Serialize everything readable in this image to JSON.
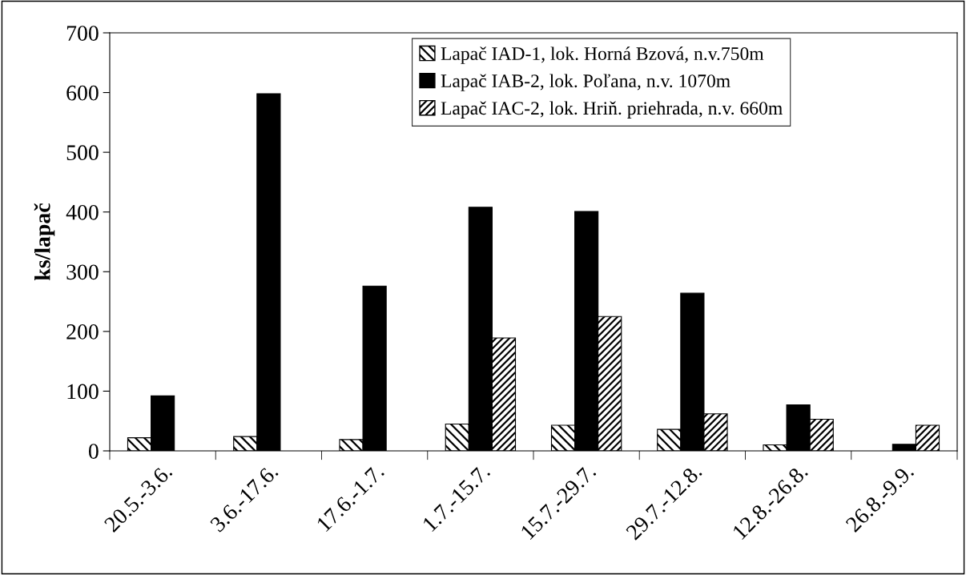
{
  "chart_data": {
    "type": "bar",
    "ylabel": "ks/lapač",
    "categories": [
      "20.5.-3.6.",
      "3.6.-17.6.",
      "17.6.-1.7.",
      "1.7.-15.7.",
      "15.7.-29.7.",
      "29.7.-12.8.",
      "12.8.-26.8.",
      "26.8.-9.9."
    ],
    "series": [
      {
        "name": "Lapač IAD-1, lok. Horná Bzová, n.v.750m",
        "color": "#000000",
        "values": [
          22,
          24,
          19,
          45,
          43,
          36,
          10,
          null
        ]
      },
      {
        "name": "Lapač IAB-2, lok. Poľana, n.v. 1070m",
        "color": "#000000",
        "values": [
          92,
          598,
          276,
          408,
          401,
          264,
          77,
          11
        ]
      },
      {
        "name": "Lapač IAC-2, lok. Hriň. priehrada, n.v. 660m",
        "color": "#000000",
        "values": [
          null,
          null,
          null,
          189,
          225,
          62,
          53,
          43
        ]
      }
    ],
    "ylim": [
      0,
      700
    ],
    "yticks": [
      0,
      100,
      200,
      300,
      400,
      500,
      600,
      700
    ],
    "grid": false,
    "legend": "top"
  }
}
